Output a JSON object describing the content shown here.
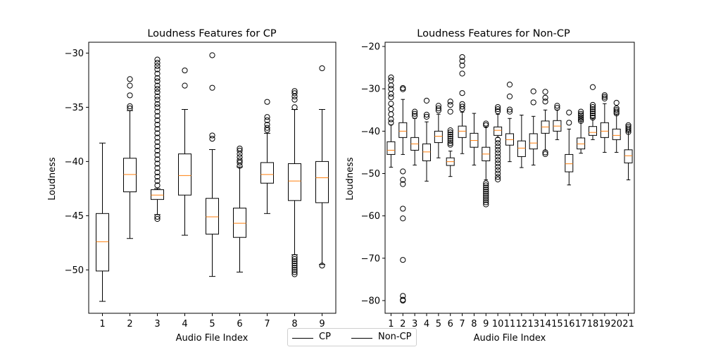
{
  "chart_data": [
    {
      "type": "box",
      "title": "Loudness Features for CP",
      "xlabel": "Audio File Index",
      "ylabel": "Loudness",
      "categories": [
        "1",
        "2",
        "3",
        "4",
        "5",
        "6",
        "7",
        "8",
        "9"
      ],
      "ylim": [
        -54,
        -29
      ],
      "yticks": [
        -30,
        -35,
        -40,
        -45,
        -50
      ],
      "ytick_labels": [
        "−30",
        "−35",
        "−40",
        "−45",
        "−50"
      ],
      "boxes": [
        {
          "whislo": -52.9,
          "q1": -50.1,
          "med": -47.4,
          "q3": -44.8,
          "whishi": -38.3,
          "fliers": []
        },
        {
          "whislo": -47.1,
          "q1": -42.8,
          "med": -41.2,
          "q3": -39.7,
          "whishi": -35.3,
          "fliers": [
            -32.4,
            -33.0,
            -33.9,
            -34.9,
            -35.1
          ]
        },
        {
          "whislo": -44.9,
          "q1": -43.5,
          "med": -43.1,
          "q3": -42.6,
          "whishi": -42.5,
          "fliers": [
            -45.1,
            -45.3,
            -30.6,
            -30.9,
            -31.2,
            -31.5,
            -31.9,
            -32.3,
            -32.6,
            -33.0,
            -33.3,
            -33.6,
            -34.0,
            -34.3,
            -34.7,
            -35.0,
            -35.4,
            -35.8,
            -36.2,
            -36.6,
            -37.0,
            -37.4,
            -37.8,
            -38.2,
            -38.6,
            -39.0,
            -39.4,
            -39.8,
            -40.2,
            -40.6,
            -41.0,
            -41.4,
            -41.8,
            -42.2
          ]
        },
        {
          "whislo": -46.8,
          "q1": -43.1,
          "med": -41.3,
          "q3": -39.3,
          "whishi": -35.2,
          "fliers": [
            -31.6,
            -33.0
          ]
        },
        {
          "whislo": -50.6,
          "q1": -46.7,
          "med": -45.1,
          "q3": -43.4,
          "whishi": -38.9,
          "fliers": [
            -30.2,
            -33.2,
            -37.6,
            -37.9
          ]
        },
        {
          "whislo": -50.2,
          "q1": -47.0,
          "med": -45.7,
          "q3": -44.3,
          "whishi": -40.5,
          "fliers": [
            -38.8,
            -39.0,
            -39.3,
            -39.6,
            -39.9,
            -40.1,
            -40.4
          ]
        },
        {
          "whislo": -44.8,
          "q1": -42.0,
          "med": -41.2,
          "q3": -40.1,
          "whishi": -37.4,
          "fliers": [
            -34.5,
            -35.9,
            -36.2,
            -36.6,
            -36.9,
            -37.1
          ]
        },
        {
          "whislo": -48.6,
          "q1": -43.6,
          "med": -41.8,
          "q3": -40.2,
          "whishi": -35.2,
          "fliers": [
            -33.5,
            -33.7,
            -34.0,
            -34.3,
            -35.0,
            -48.8,
            -49.0,
            -49.2,
            -49.4,
            -49.6,
            -49.8,
            -50.0,
            -50.2,
            -50.4
          ]
        },
        {
          "whislo": -49.5,
          "q1": -43.8,
          "med": -41.5,
          "q3": -40.0,
          "whishi": -35.2,
          "fliers": [
            -31.4,
            -49.6
          ]
        }
      ]
    },
    {
      "type": "box",
      "title": "Loudness Features for Non-CP",
      "xlabel": "Audio File Index",
      "ylabel": "Loudness",
      "categories": [
        "1",
        "2",
        "3",
        "4",
        "5",
        "6",
        "7",
        "8",
        "9",
        "10",
        "11",
        "12",
        "13",
        "14",
        "15",
        "16",
        "17",
        "18",
        "19",
        "20",
        "21"
      ],
      "ylim": [
        -83,
        -19
      ],
      "yticks": [
        -20,
        -30,
        -40,
        -50,
        -60,
        -70,
        -80
      ],
      "ytick_labels": [
        "−20",
        "−30",
        "−40",
        "−50",
        "−60",
        "−70",
        "−80"
      ],
      "boxes": [
        {
          "whislo": -48.5,
          "q1": -45.5,
          "med": -44.5,
          "q3": -42.5,
          "whishi": -38.5,
          "fliers": [
            -27.3,
            -28.0,
            -29.2,
            -30.0,
            -31.2,
            -32.0,
            -33.5,
            -34.8,
            -36.0,
            -37.2,
            -38.0
          ]
        },
        {
          "whislo": -45.5,
          "q1": -41.5,
          "med": -40.0,
          "q3": -38.0,
          "whishi": -32.5,
          "fliers": [
            -29.8,
            -30.1,
            -49.5,
            -51.5,
            -52.5,
            -58.3,
            -60.6,
            -70.4,
            -78.9,
            -79.8,
            -80.0
          ]
        },
        {
          "whislo": -48.0,
          "q1": -44.5,
          "med": -43.0,
          "q3": -41.5,
          "whishi": -37.0,
          "fliers": [
            -35.4,
            -35.9,
            -36.4
          ]
        },
        {
          "whislo": -51.8,
          "q1": -47.0,
          "med": -44.9,
          "q3": -43.0,
          "whishi": -37.8,
          "fliers": [
            -32.8,
            -36.1,
            -36.6
          ]
        },
        {
          "whislo": -46.3,
          "q1": -42.7,
          "med": -41.2,
          "q3": -40.0,
          "whishi": -36.0,
          "fliers": [
            -34.0,
            -34.6,
            -35.1
          ]
        },
        {
          "whislo": -50.7,
          "q1": -48.1,
          "med": -47.2,
          "q3": -46.3,
          "whishi": -44.7,
          "fliers": [
            -33.0,
            -33.8,
            -35.4,
            -39.8,
            -40.3,
            -40.8,
            -41.3,
            -41.8,
            -42.3,
            -42.8,
            -43.2
          ]
        },
        {
          "whislo": -45.3,
          "q1": -41.5,
          "med": -40.0,
          "q3": -38.8,
          "whishi": -35.5,
          "fliers": [
            -22.5,
            -23.4,
            -24.5,
            -26.4,
            -31.0,
            -33.6,
            -34.2,
            -34.8
          ]
        },
        {
          "whislo": -48.0,
          "q1": -43.8,
          "med": -42.2,
          "q3": -40.5,
          "whishi": -35.8,
          "fliers": []
        },
        {
          "whislo": -51.5,
          "q1": -47.0,
          "med": -45.4,
          "q3": -43.8,
          "whishi": -39.0,
          "fliers": [
            -38.2,
            -38.6,
            -52.3,
            -52.8,
            -53.3,
            -53.8,
            -54.3,
            -54.8,
            -55.3,
            -55.8,
            -56.3,
            -56.8,
            -57.3
          ]
        },
        {
          "whislo": -41.5,
          "q1": -41.0,
          "med": -39.8,
          "q3": -39.0,
          "whishi": -36.0,
          "fliers": [
            -34.3,
            -34.8,
            -35.3,
            -42.0,
            -42.8,
            -43.6,
            -44.4,
            -45.2,
            -46.0,
            -46.8,
            -47.6,
            -48.4,
            -49.2,
            -50.0,
            -50.8,
            -51.4
          ]
        },
        {
          "whislo": -47.2,
          "q1": -43.3,
          "med": -42.0,
          "q3": -40.6,
          "whishi": -37.0,
          "fliers": [
            -29.0,
            -31.8,
            -34.9,
            -35.4
          ]
        },
        {
          "whislo": -48.6,
          "q1": -46.0,
          "med": -44.0,
          "q3": -42.3,
          "whishi": -36.2,
          "fliers": []
        },
        {
          "whislo": -48.0,
          "q1": -44.2,
          "med": -42.8,
          "q3": -40.6,
          "whishi": -36.5,
          "fliers": [
            -30.6,
            -33.2
          ]
        },
        {
          "whislo": -44.5,
          "q1": -40.5,
          "med": -39.0,
          "q3": -37.6,
          "whishi": -35.0,
          "fliers": [
            -30.7,
            -32.1,
            -33.0,
            -45.0,
            -45.4
          ]
        },
        {
          "whislo": -42.0,
          "q1": -40.0,
          "med": -38.8,
          "q3": -37.5,
          "whishi": -35.0,
          "fliers": [
            -34.0,
            -34.5
          ]
        },
        {
          "whislo": -52.7,
          "q1": -49.6,
          "med": -47.7,
          "q3": -45.5,
          "whishi": -39.5,
          "fliers": [
            -35.6,
            -38.0
          ]
        },
        {
          "whislo": -45.2,
          "q1": -44.2,
          "med": -43.0,
          "q3": -41.6,
          "whishi": -37.3,
          "fliers": [
            -35.4,
            -35.9,
            -36.3,
            -36.8,
            -37.2,
            -37.6
          ]
        },
        {
          "whislo": -42.0,
          "q1": -41.0,
          "med": -40.3,
          "q3": -38.9,
          "whishi": -37.0,
          "fliers": [
            -29.6,
            -33.8,
            -34.3,
            -34.8,
            -35.3,
            -35.8,
            -36.3,
            -36.8
          ]
        },
        {
          "whislo": -45.0,
          "q1": -41.5,
          "med": -40.0,
          "q3": -38.0,
          "whishi": -33.5,
          "fliers": [
            -31.5,
            -31.9,
            -32.3
          ]
        },
        {
          "whislo": -45.0,
          "q1": -42.0,
          "med": -41.0,
          "q3": -39.5,
          "whishi": -36.0,
          "fliers": [
            -33.3,
            -34.6,
            -35.0,
            -35.4,
            -35.8
          ]
        },
        {
          "whislo": -51.5,
          "q1": -47.5,
          "med": -45.8,
          "q3": -44.4,
          "whishi": -40.0,
          "fliers": [
            -38.6,
            -39.0,
            -39.4,
            -39.8,
            -40.2
          ]
        }
      ]
    }
  ],
  "legend": [
    {
      "label": "CP",
      "color": "#000000"
    },
    {
      "label": "Non-CP",
      "color": "#000000"
    }
  ],
  "colors": {
    "box": "#000000",
    "median": "#ff7f0e",
    "flier": "#000000"
  }
}
